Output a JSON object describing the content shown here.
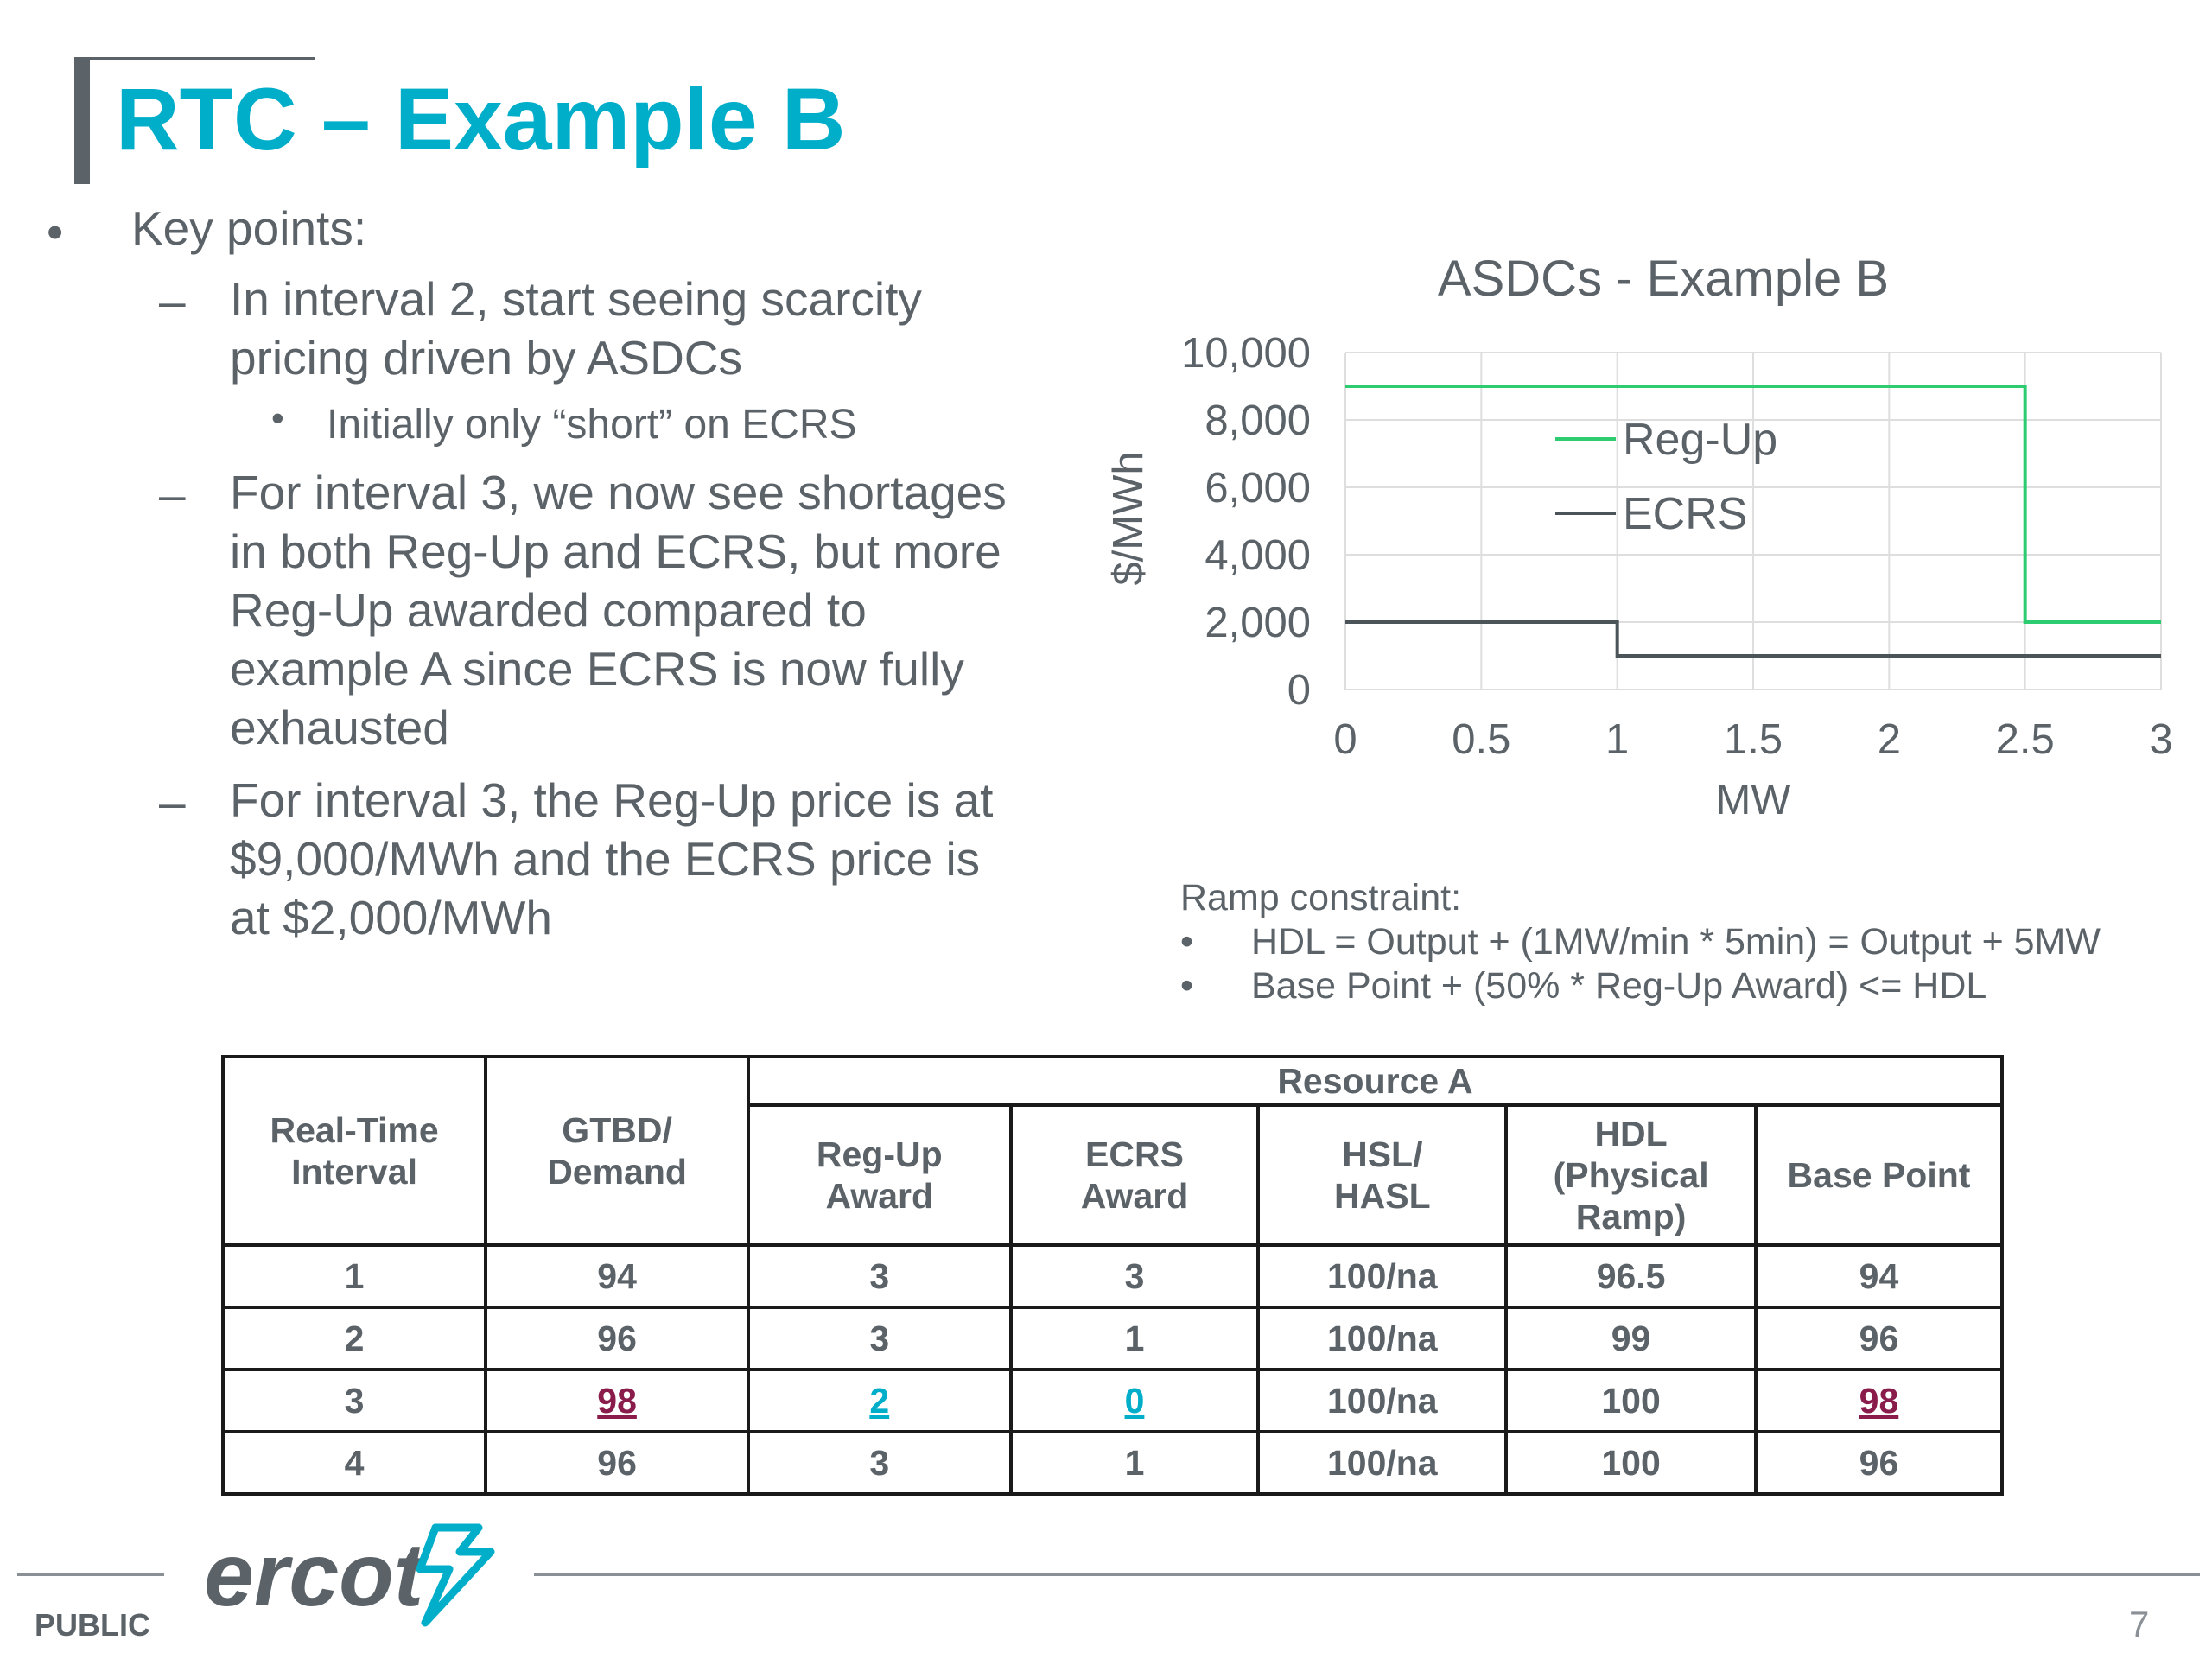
{
  "slide": {
    "title": "RTC – Example B",
    "bullets": {
      "main": "Key points:",
      "sub1_line1": "In interval 2, start seeing scarcity",
      "sub1_line2": "pricing driven by ASDCs",
      "sub1_nested": "Initially only “short” on ECRS",
      "sub2_line1": "For interval 3, we now see shortages",
      "sub2_line2": "in both Reg-Up and ECRS, but more",
      "sub2_line3": "Reg-Up awarded compared to",
      "sub2_line4": "example A since ECRS is now fully",
      "sub2_line5": "exhausted",
      "sub3_line1": "For interval 3, the Reg-Up price is at",
      "sub3_line2": "$9,000/MWh and the ECRS price is",
      "sub3_line3": "at $2,000/MWh"
    },
    "ramp": {
      "heading": "Ramp constraint:",
      "line1": "HDL =  Output + (1MW/min * 5min) = Output + 5MW",
      "line2": "Base Point + (50% * Reg-Up Award) <= HDL"
    },
    "footer": {
      "classification": "PUBLIC",
      "logo_text": "ercot",
      "page_number": "7"
    },
    "colors": {
      "accent": "#00aeca",
      "text": "#5b6369",
      "regup": "#2ecc71",
      "ecrs": "#4a5459",
      "highlight_red": "#8a1c4b"
    }
  },
  "chart_data": {
    "type": "line",
    "title": "ASDCs - Example B",
    "xlabel": "MW",
    "ylabel": "$/MWh",
    "xlim": [
      0,
      3
    ],
    "ylim": [
      0,
      10000
    ],
    "x_ticks": [
      "0",
      "0.5",
      "1",
      "1.5",
      "2",
      "2.5",
      "3"
    ],
    "y_ticks": [
      "0",
      "2,000",
      "4,000",
      "6,000",
      "8,000",
      "10,000"
    ],
    "grid": true,
    "legend": "inside-top-center",
    "series": [
      {
        "name": "Reg-Up",
        "step": true,
        "x": [
          0,
          2.5,
          2.5,
          3
        ],
        "y": [
          9000,
          9000,
          2000,
          2000
        ]
      },
      {
        "name": "ECRS",
        "step": true,
        "x": [
          0,
          1,
          1,
          3
        ],
        "y": [
          2000,
          2000,
          1000,
          1000
        ]
      }
    ]
  },
  "table": {
    "headers": {
      "interval": "Real-Time Interval",
      "gtbd": "GTBD/ Demand",
      "group": "Resource A",
      "regup": "Reg-Up Award",
      "ecrs": "ECRS Award",
      "hsl": "HSL/ HASL",
      "hdl": "HDL (Physical Ramp)",
      "bp": "Base Point"
    },
    "rows": [
      [
        "1",
        "94",
        "3",
        "3",
        "100/na",
        "96.5",
        "94"
      ],
      [
        "2",
        "96",
        "3",
        "1",
        "100/na",
        "99",
        "96"
      ],
      [
        "3",
        "98",
        "2",
        "0",
        "100/na",
        "100",
        "98"
      ],
      [
        "4",
        "96",
        "3",
        "1",
        "100/na",
        "100",
        "96"
      ]
    ]
  }
}
